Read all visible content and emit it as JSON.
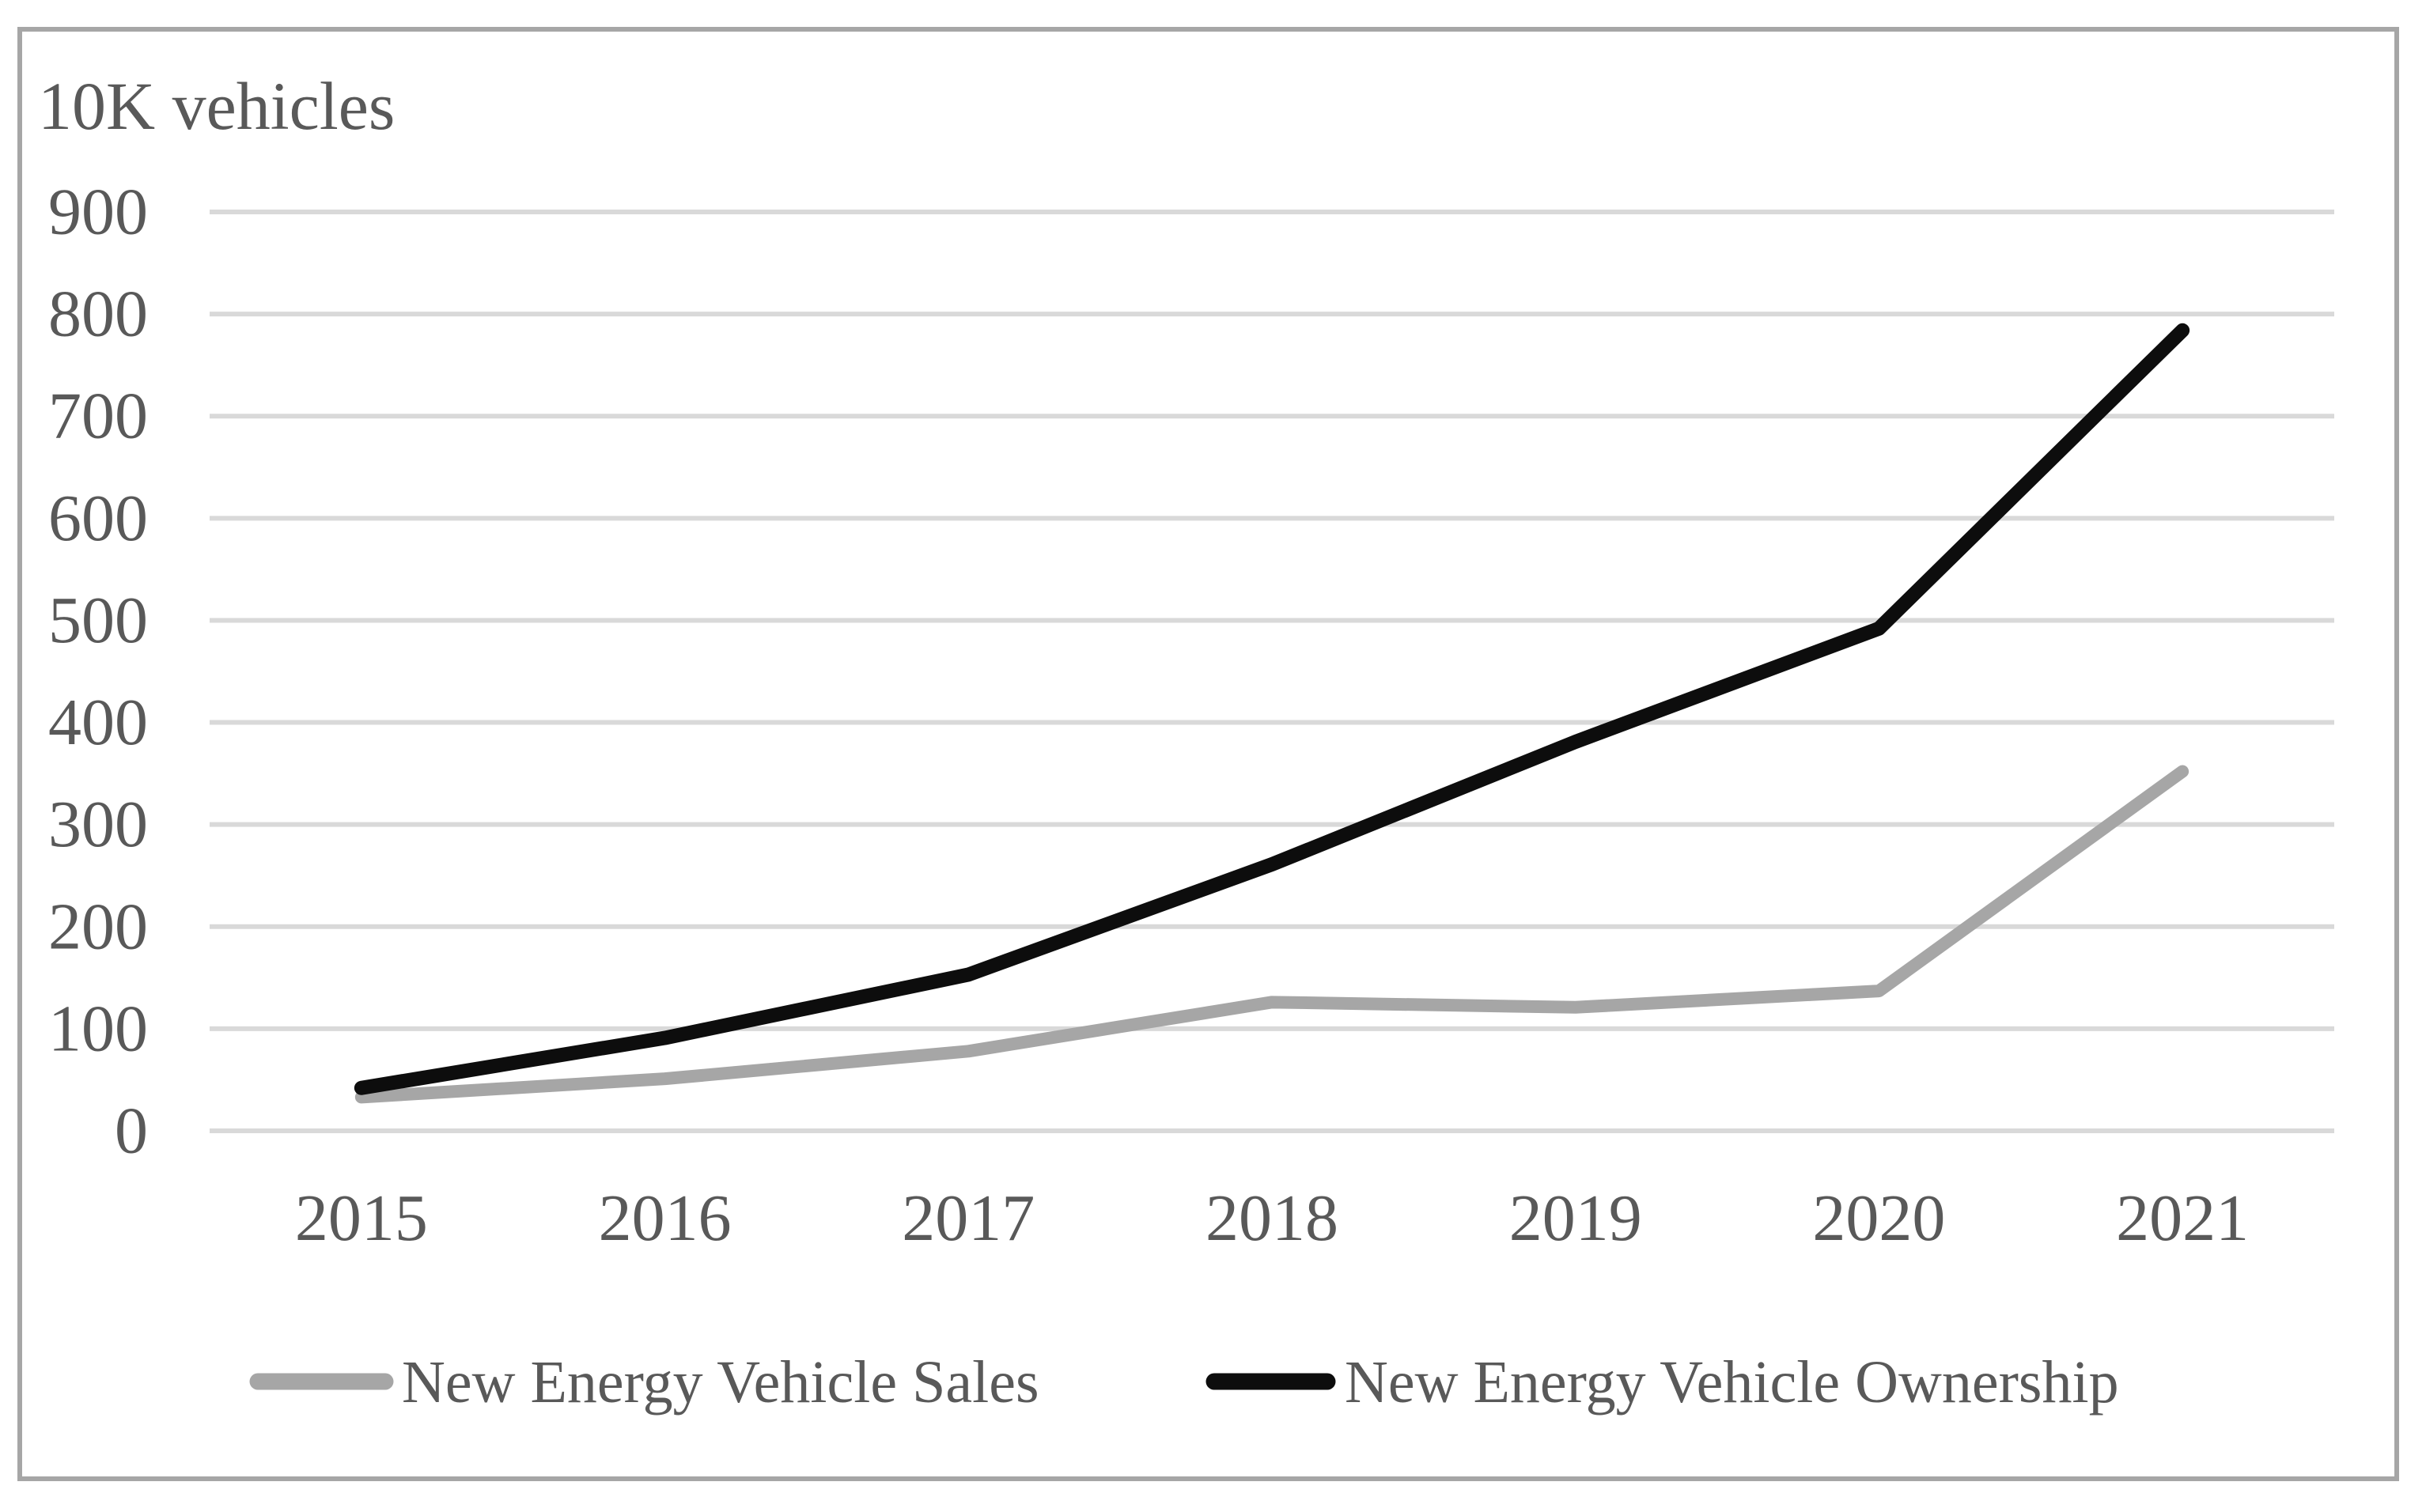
{
  "chart_data": {
    "type": "line",
    "title": "10K vehicles",
    "ylabel": "10K vehicles",
    "xlabel": "",
    "categories": [
      "2015",
      "2016",
      "2017",
      "2018",
      "2019",
      "2020",
      "2021"
    ],
    "series": [
      {
        "name": "New Energy Vehicle Sales",
        "color": "#a6a6a6",
        "values": [
          33,
          51,
          78,
          126,
          121,
          137,
          352
        ]
      },
      {
        "name": "New Energy Vehicle Ownership",
        "color": "#0d0d0d",
        "values": [
          42,
          91,
          153,
          261,
          381,
          492,
          784
        ]
      }
    ],
    "ylim": [
      0,
      900
    ],
    "ytick_step": 100,
    "yticks": [
      "0",
      "100",
      "200",
      "300",
      "400",
      "500",
      "600",
      "700",
      "800",
      "900"
    ],
    "grid": "horizontal",
    "gridline_color": "#d9d9d9",
    "border_color": "#a6a6a6",
    "label_color": "#595959",
    "legend_position": "bottom"
  }
}
